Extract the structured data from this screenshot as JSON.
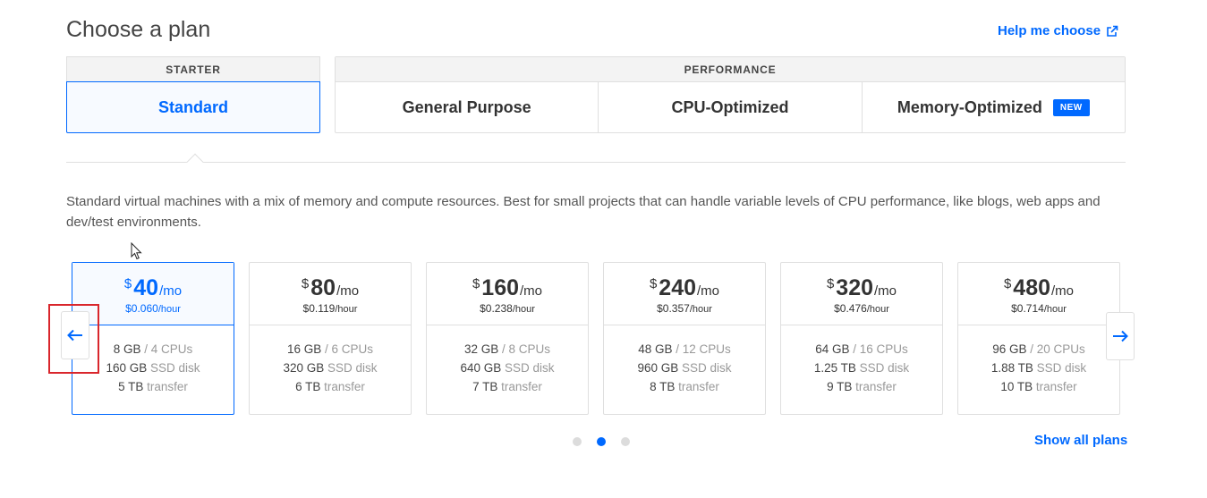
{
  "page": {
    "title": "Choose a plan",
    "help_link": "Help me choose",
    "description": "Standard virtual machines with a mix of memory and compute resources. Best for small projects that can handle variable levels of CPU performance, like blogs, web apps and dev/test environments.",
    "show_all": "Show all plans"
  },
  "groups": {
    "starter": {
      "header": "STARTER",
      "tabs": [
        {
          "label": "Standard"
        }
      ]
    },
    "performance": {
      "header": "PERFORMANCE",
      "tabs": [
        {
          "label": "General Purpose"
        },
        {
          "label": "CPU-Optimized"
        },
        {
          "label": "Memory-Optimized",
          "badge": "NEW"
        }
      ]
    }
  },
  "plans": [
    {
      "dollar": "$",
      "price": "40",
      "unit": "/mo",
      "hourly": "$0.060",
      "hourly_unit": "/hour",
      "memory": "8 GB",
      "cpus": "/ 4 CPUs",
      "disk": "160 GB",
      "disk_label": "SSD disk",
      "transfer": "5 TB",
      "transfer_label": "transfer",
      "selected": true
    },
    {
      "dollar": "$",
      "price": "80",
      "unit": "/mo",
      "hourly": "$0.119",
      "hourly_unit": "/hour",
      "memory": "16 GB",
      "cpus": "/ 6 CPUs",
      "disk": "320 GB",
      "disk_label": "SSD disk",
      "transfer": "6 TB",
      "transfer_label": "transfer",
      "selected": false
    },
    {
      "dollar": "$",
      "price": "160",
      "unit": "/mo",
      "hourly": "$0.238",
      "hourly_unit": "/hour",
      "memory": "32 GB",
      "cpus": "/ 8 CPUs",
      "disk": "640 GB",
      "disk_label": "SSD disk",
      "transfer": "7 TB",
      "transfer_label": "transfer",
      "selected": false
    },
    {
      "dollar": "$",
      "price": "240",
      "unit": "/mo",
      "hourly": "$0.357",
      "hourly_unit": "/hour",
      "memory": "48 GB",
      "cpus": "/ 12 CPUs",
      "disk": "960 GB",
      "disk_label": "SSD disk",
      "transfer": "8 TB",
      "transfer_label": "transfer",
      "selected": false
    },
    {
      "dollar": "$",
      "price": "320",
      "unit": "/mo",
      "hourly": "$0.476",
      "hourly_unit": "/hour",
      "memory": "64 GB",
      "cpus": "/ 16 CPUs",
      "disk": "1.25 TB",
      "disk_label": "SSD disk",
      "transfer": "9 TB",
      "transfer_label": "transfer",
      "selected": false
    },
    {
      "dollar": "$",
      "price": "480",
      "unit": "/mo",
      "hourly": "$0.714",
      "hourly_unit": "/hour",
      "memory": "96 GB",
      "cpus": "/ 20 CPUs",
      "disk": "1.88 TB",
      "disk_label": "SSD disk",
      "transfer": "10 TB",
      "transfer_label": "transfer",
      "selected": false
    }
  ],
  "icons": {
    "external_link": "external-link-icon",
    "prev": "arrow-left-icon",
    "next": "arrow-right-icon",
    "cursor": "mouse-cursor-icon"
  },
  "pagination": {
    "pages": 3,
    "active": 2
  },
  "colors": {
    "accent": "#0069ff",
    "highlight": "#d9262c",
    "border": "#dfdfdf"
  }
}
